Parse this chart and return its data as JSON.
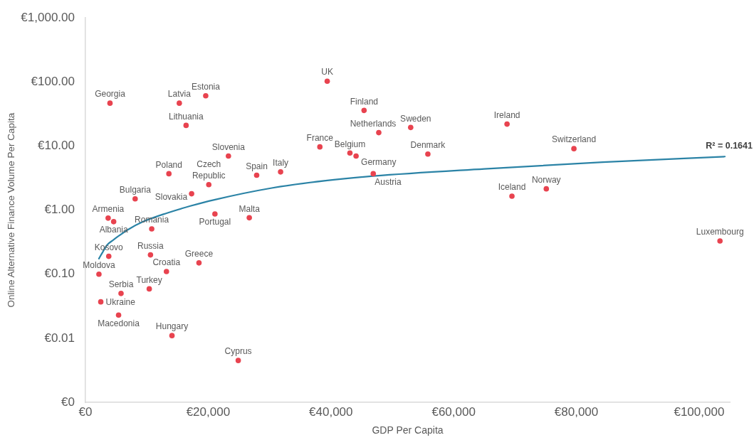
{
  "chart_data": {
    "type": "scatter",
    "xlabel": "GDP Per Capita",
    "ylabel": "Online Alternative Finance Volume Per Capita",
    "xlim": [
      0,
      105000
    ],
    "xticks": [
      {
        "value": 0,
        "label": "€0"
      },
      {
        "value": 20000,
        "label": "€20,000"
      },
      {
        "value": 40000,
        "label": "€40,000"
      },
      {
        "value": 60000,
        "label": "€60,000"
      },
      {
        "value": 80000,
        "label": "€80,000"
      },
      {
        "value": 100000,
        "label": "€100,000"
      }
    ],
    "ylim": [
      0.001,
      1000
    ],
    "log": "y",
    "yticks": [
      {
        "value": 0.001,
        "label": "€0"
      },
      {
        "value": 0.01,
        "label": "€0.01"
      },
      {
        "value": 0.1,
        "label": "€0.10"
      },
      {
        "value": 1,
        "label": "€1.00"
      },
      {
        "value": 10,
        "label": "€10.00"
      },
      {
        "value": 100,
        "label": "€100.00"
      },
      {
        "value": 1000,
        "label": "€1,000.00"
      }
    ],
    "legend": false,
    "series": [
      {
        "type": "scatter",
        "marker": "circle",
        "color": "#e8434f",
        "x": [
          4000,
          15300,
          19600,
          16400,
          23300,
          13600,
          20100,
          27900,
          31800,
          17300,
          8100,
          3700,
          4600,
          21100,
          26700,
          10800,
          3800,
          10600,
          18500,
          2200,
          13200,
          10400,
          5800,
          2500,
          5400,
          14100,
          24900,
          39400,
          45400,
          53000,
          47800,
          38200,
          43100,
          44100,
          55800,
          46900,
          68700,
          79600,
          69500,
          75100,
          103400
        ],
        "values": [
          46.7,
          46.7,
          61,
          21,
          7.0,
          3.7,
          2.5,
          3.5,
          3.95,
          1.8,
          1.5,
          0.75,
          0.66,
          0.87,
          0.76,
          0.51,
          0.19,
          0.2,
          0.15,
          0.1,
          0.11,
          0.059,
          0.05,
          0.037,
          0.023,
          0.011,
          0.0045,
          103,
          36,
          19.5,
          16.2,
          9.7,
          7.8,
          7.0,
          7.5,
          3.7,
          22,
          9.1,
          1.65,
          2.15,
          0.33
        ],
        "value_labels": [
          "Georgia",
          "Latvia",
          "Estonia",
          "Lithuania",
          "Slovenia",
          "Poland",
          "Czech Republic",
          "Spain",
          "Italy",
          "Slovakia",
          "Bulgaria",
          "Armenia",
          "Albania",
          "Portugal",
          "Malta",
          "Romania",
          "Kosovo",
          "Russia",
          "Greece",
          "Moldova",
          "Croatia",
          "Turkey",
          "Serbia",
          "Ukraine",
          "Macedonia",
          "Hungary",
          "Cyprus",
          "UK",
          "Finland",
          "Sweden",
          "Netherlands",
          "France",
          "Belgium",
          "Germany",
          "Denmark",
          "Austria",
          "Ireland",
          "Switzerland",
          "Iceland",
          "Norway",
          "Luxembourg"
        ]
      },
      {
        "type": "line",
        "marker": "none",
        "color": "#2b83a6",
        "x": [
          2200,
          2800,
          3600,
          4500,
          5500,
          7000,
          9400,
          13300,
          17100,
          21000,
          30200,
          39400,
          46900,
          65000,
          84300,
          104200
        ],
        "values": [
          0.175,
          0.22,
          0.29,
          0.34,
          0.4,
          0.5,
          0.66,
          0.9,
          1.16,
          1.45,
          2.2,
          2.9,
          3.4,
          4.4,
          5.6,
          6.85
        ]
      }
    ],
    "annotations": [
      {
        "text": "R² = 0.1641",
        "x": 104200,
        "y": 6.85
      }
    ]
  }
}
